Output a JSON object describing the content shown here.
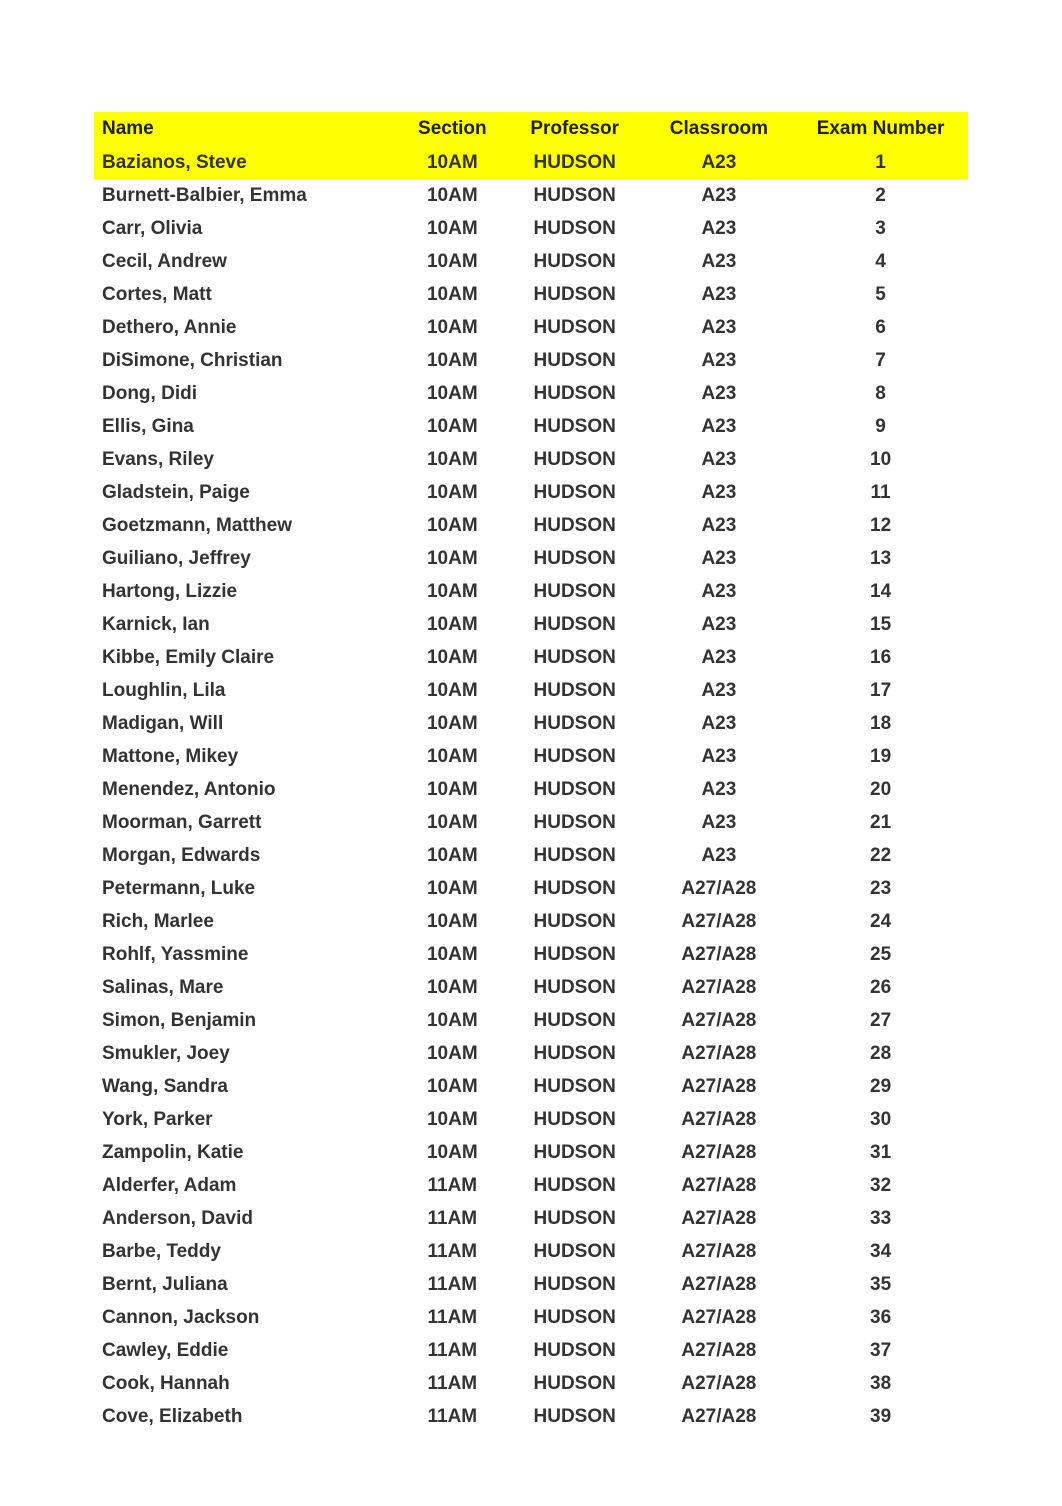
{
  "headers": {
    "name": "Name",
    "section": "Section",
    "professor": "Professor",
    "classroom": "Classroom",
    "exam_number": "Exam Number"
  },
  "highlight_color": "#feff00",
  "rows": [
    {
      "name": "Bazianos, Steve",
      "section": "10AM",
      "professor": "HUDSON",
      "classroom": "A23",
      "exam": "1",
      "hl": true
    },
    {
      "name": "Burnett-Balbier, Emma",
      "section": "10AM",
      "professor": "HUDSON",
      "classroom": "A23",
      "exam": "2",
      "hl": false
    },
    {
      "name": "Carr, Olivia",
      "section": "10AM",
      "professor": "HUDSON",
      "classroom": "A23",
      "exam": "3",
      "hl": false
    },
    {
      "name": "Cecil, Andrew",
      "section": "10AM",
      "professor": "HUDSON",
      "classroom": "A23",
      "exam": "4",
      "hl": false
    },
    {
      "name": "Cortes, Matt",
      "section": "10AM",
      "professor": "HUDSON",
      "classroom": "A23",
      "exam": "5",
      "hl": false
    },
    {
      "name": "Dethero, Annie",
      "section": "10AM",
      "professor": "HUDSON",
      "classroom": "A23",
      "exam": "6",
      "hl": false
    },
    {
      "name": "DiSimone, Christian",
      "section": "10AM",
      "professor": "HUDSON",
      "classroom": "A23",
      "exam": "7",
      "hl": false
    },
    {
      "name": "Dong, Didi",
      "section": "10AM",
      "professor": "HUDSON",
      "classroom": "A23",
      "exam": "8",
      "hl": false
    },
    {
      "name": "Ellis, Gina",
      "section": "10AM",
      "professor": "HUDSON",
      "classroom": "A23",
      "exam": "9",
      "hl": false
    },
    {
      "name": "Evans, Riley",
      "section": "10AM",
      "professor": "HUDSON",
      "classroom": "A23",
      "exam": "10",
      "hl": false
    },
    {
      "name": "Gladstein, Paige",
      "section": "10AM",
      "professor": "HUDSON",
      "classroom": "A23",
      "exam": "11",
      "hl": false
    },
    {
      "name": "Goetzmann, Matthew",
      "section": "10AM",
      "professor": "HUDSON",
      "classroom": "A23",
      "exam": "12",
      "hl": false
    },
    {
      "name": "Guiliano, Jeffrey",
      "section": "10AM",
      "professor": "HUDSON",
      "classroom": "A23",
      "exam": "13",
      "hl": false
    },
    {
      "name": "Hartong, Lizzie",
      "section": "10AM",
      "professor": "HUDSON",
      "classroom": "A23",
      "exam": "14",
      "hl": false
    },
    {
      "name": "Karnick, Ian",
      "section": "10AM",
      "professor": "HUDSON",
      "classroom": "A23",
      "exam": "15",
      "hl": false
    },
    {
      "name": "Kibbe, Emily Claire",
      "section": "10AM",
      "professor": "HUDSON",
      "classroom": "A23",
      "exam": "16",
      "hl": false
    },
    {
      "name": "Loughlin, Lila",
      "section": "10AM",
      "professor": "HUDSON",
      "classroom": "A23",
      "exam": "17",
      "hl": false
    },
    {
      "name": "Madigan, Will",
      "section": "10AM",
      "professor": "HUDSON",
      "classroom": "A23",
      "exam": "18",
      "hl": false
    },
    {
      "name": "Mattone, Mikey",
      "section": "10AM",
      "professor": "HUDSON",
      "classroom": "A23",
      "exam": "19",
      "hl": false
    },
    {
      "name": "Menendez, Antonio",
      "section": "10AM",
      "professor": "HUDSON",
      "classroom": "A23",
      "exam": "20",
      "hl": false
    },
    {
      "name": "Moorman, Garrett",
      "section": "10AM",
      "professor": "HUDSON",
      "classroom": "A23",
      "exam": "21",
      "hl": false
    },
    {
      "name": "Morgan, Edwards",
      "section": "10AM",
      "professor": "HUDSON",
      "classroom": "A23",
      "exam": "22",
      "hl": false
    },
    {
      "name": "Petermann, Luke",
      "section": "10AM",
      "professor": "HUDSON",
      "classroom": "A27/A28",
      "exam": "23",
      "hl": false
    },
    {
      "name": "Rich, Marlee",
      "section": "10AM",
      "professor": "HUDSON",
      "classroom": "A27/A28",
      "exam": "24",
      "hl": false
    },
    {
      "name": "Rohlf, Yassmine",
      "section": "10AM",
      "professor": "HUDSON",
      "classroom": "A27/A28",
      "exam": "25",
      "hl": false
    },
    {
      "name": "Salinas, Mare",
      "section": "10AM",
      "professor": "HUDSON",
      "classroom": "A27/A28",
      "exam": "26",
      "hl": false
    },
    {
      "name": "Simon, Benjamin",
      "section": "10AM",
      "professor": "HUDSON",
      "classroom": "A27/A28",
      "exam": "27",
      "hl": false
    },
    {
      "name": "Smukler, Joey",
      "section": "10AM",
      "professor": "HUDSON",
      "classroom": "A27/A28",
      "exam": "28",
      "hl": false
    },
    {
      "name": "Wang, Sandra",
      "section": "10AM",
      "professor": "HUDSON",
      "classroom": "A27/A28",
      "exam": "29",
      "hl": false
    },
    {
      "name": "York, Parker",
      "section": "10AM",
      "professor": "HUDSON",
      "classroom": "A27/A28",
      "exam": "30",
      "hl": false
    },
    {
      "name": "Zampolin, Katie",
      "section": "10AM",
      "professor": "HUDSON",
      "classroom": "A27/A28",
      "exam": "31",
      "hl": false
    },
    {
      "name": "Alderfer, Adam",
      "section": "11AM",
      "professor": "HUDSON",
      "classroom": "A27/A28",
      "exam": "32",
      "hl": false
    },
    {
      "name": "Anderson, David",
      "section": "11AM",
      "professor": "HUDSON",
      "classroom": "A27/A28",
      "exam": "33",
      "hl": false
    },
    {
      "name": "Barbe, Teddy",
      "section": "11AM",
      "professor": "HUDSON",
      "classroom": "A27/A28",
      "exam": "34",
      "hl": false
    },
    {
      "name": "Bernt, Juliana",
      "section": "11AM",
      "professor": "HUDSON",
      "classroom": "A27/A28",
      "exam": "35",
      "hl": false
    },
    {
      "name": "Cannon, Jackson",
      "section": "11AM",
      "professor": "HUDSON",
      "classroom": "A27/A28",
      "exam": "36",
      "hl": false
    },
    {
      "name": "Cawley, Eddie",
      "section": "11AM",
      "professor": "HUDSON",
      "classroom": "A27/A28",
      "exam": "37",
      "hl": false
    },
    {
      "name": "Cook, Hannah",
      "section": "11AM",
      "professor": "HUDSON",
      "classroom": "A27/A28",
      "exam": "38",
      "hl": false
    },
    {
      "name": "Cove, Elizabeth",
      "section": "11AM",
      "professor": "HUDSON",
      "classroom": "A27/A28",
      "exam": "39",
      "hl": false
    }
  ]
}
